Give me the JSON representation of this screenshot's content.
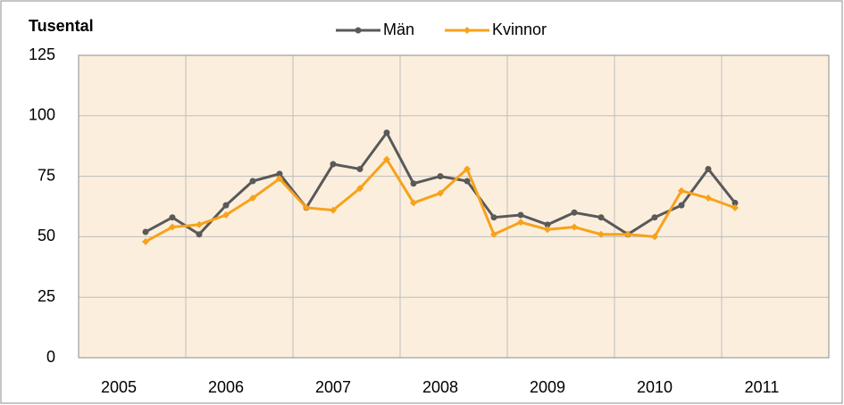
{
  "chart_data": {
    "type": "line",
    "title": "Tusental",
    "categories": [
      null,
      "2005",
      null,
      null,
      null,
      "2006",
      null,
      null,
      null,
      "2007",
      null,
      null,
      null,
      "2008",
      null,
      null,
      null,
      "2009",
      null,
      null,
      null,
      "2010",
      null,
      null,
      null,
      "2011",
      null,
      null
    ],
    "series": [
      {
        "name": "Män",
        "color": "#595959",
        "values": [
          null,
          null,
          52,
          58,
          51,
          63,
          73,
          76,
          62,
          80,
          78,
          93,
          72,
          75,
          73,
          58,
          59,
          55,
          60,
          58,
          51,
          58,
          63,
          78,
          64,
          null,
          null,
          null
        ]
      },
      {
        "name": "Kvinnor",
        "color": "#f7a21b",
        "values": [
          null,
          null,
          48,
          54,
          55,
          59,
          66,
          74,
          62,
          61,
          70,
          82,
          64,
          68,
          78,
          51,
          56,
          53,
          54,
          51,
          51,
          50,
          69,
          66,
          62,
          null,
          null,
          null
        ]
      }
    ],
    "ylim": [
      0,
      125
    ],
    "yticks": [
      0,
      25,
      50,
      75,
      100,
      125
    ],
    "grid": true,
    "legend": "top"
  }
}
